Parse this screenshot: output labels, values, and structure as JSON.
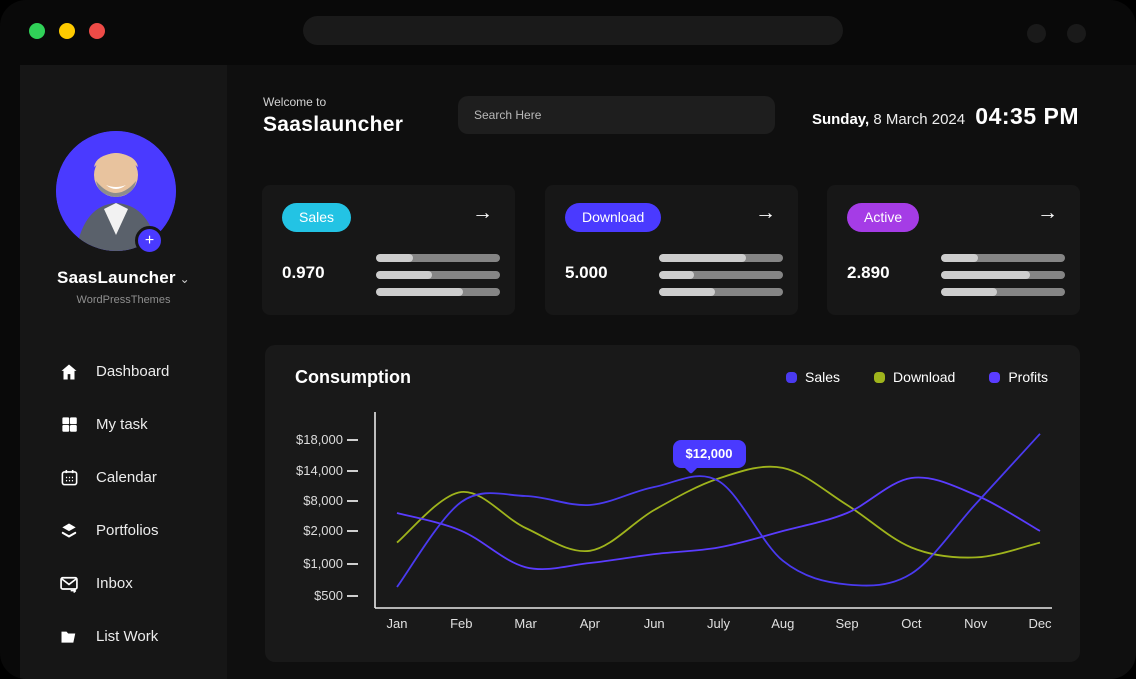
{
  "window": {
    "traffic_lights": [
      {
        "name": "green",
        "color": "#30d158"
      },
      {
        "name": "yellow",
        "color": "#ffcb00"
      },
      {
        "name": "red",
        "color": "#ee4b47"
      }
    ]
  },
  "sidebar": {
    "profile": {
      "name": "SaasLauncher",
      "chevron": "⌄",
      "subtitle": "WordPressThemes",
      "avatar_bg": "#4a3aff",
      "add_label": "+"
    },
    "items": [
      {
        "icon": "home-icon",
        "label": "Dashboard"
      },
      {
        "icon": "grid-icon",
        "label": "My task"
      },
      {
        "icon": "calendar-icon",
        "label": "Calendar"
      },
      {
        "icon": "layers-icon",
        "label": "Portfolios"
      },
      {
        "icon": "inbox-icon",
        "label": "Inbox"
      },
      {
        "icon": "folder-icon",
        "label": "List Work"
      }
    ]
  },
  "header": {
    "welcome_label": "Welcome to",
    "app_title": "Saaslauncher",
    "search_placeholder": "Search Here",
    "date_day": "Sunday,",
    "date_rest": "8 March 2024",
    "time": "04:35 PM"
  },
  "stat_cards": [
    {
      "label": "Sales",
      "badge_color": "#23c3e4",
      "value": "0.970",
      "arrow": "→",
      "bars": [
        0.3,
        0.45,
        0.7
      ]
    },
    {
      "label": "Download",
      "badge_color": "#4a3aff",
      "value": "5.000",
      "arrow": "→",
      "bars": [
        0.7,
        0.28,
        0.45
      ]
    },
    {
      "label": "Active",
      "badge_color": "#a53ce6",
      "value": "2.890",
      "arrow": "→",
      "bars": [
        0.3,
        0.72,
        0.45
      ]
    }
  ],
  "chart": {
    "title": "Consumption",
    "tooltip_bg": "#4a3aff"
  },
  "chart_data": {
    "type": "line",
    "title": "Consumption",
    "grid": false,
    "legend_position": "top-right",
    "categories": [
      "Jan",
      "Feb",
      "Mar",
      "Apr",
      "Jun",
      "July",
      "Aug",
      "Sep",
      "Oct",
      "Nov",
      "Dec"
    ],
    "y_ticks": [
      {
        "label": "$500",
        "value": 500
      },
      {
        "label": "$1,000",
        "value": 1000
      },
      {
        "label": "$2,000",
        "value": 2000
      },
      {
        "label": "$8,000",
        "value": 8000
      },
      {
        "label": "$14,000",
        "value": 14000
      },
      {
        "label": "$18,000",
        "value": 18000
      }
    ],
    "series": [
      {
        "name": "Sales",
        "color": "#4a3af0",
        "values": [
          640,
          7800,
          9000,
          7200,
          10800,
          12000,
          1100,
          680,
          850,
          7400,
          18800
        ]
      },
      {
        "name": "Download",
        "color": "#9fb41c",
        "values": [
          1650,
          9800,
          2600,
          1400,
          6200,
          12500,
          14400,
          7200,
          1500,
          1200,
          1650
        ]
      },
      {
        "name": "Profits",
        "color": "#5a3cff",
        "values": [
          5600,
          2050,
          950,
          1030,
          1300,
          1500,
          2000,
          5600,
          12600,
          9200,
          2000
        ]
      }
    ],
    "tooltip": {
      "label": "$12,000",
      "series": "Sales",
      "category": "July"
    }
  }
}
